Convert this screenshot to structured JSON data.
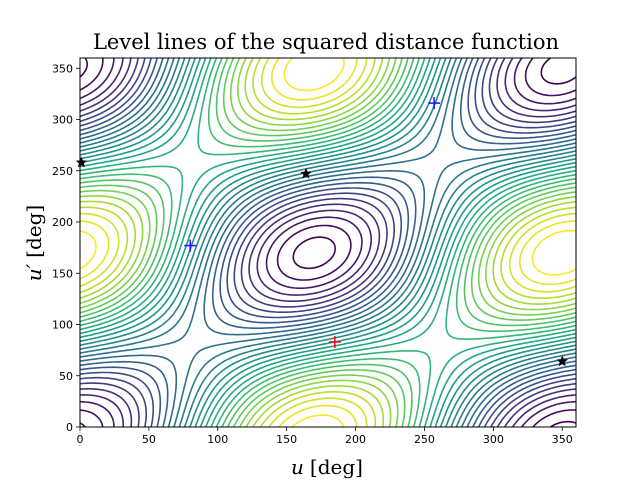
{
  "chart_data": {
    "type": "contour",
    "title": "Level lines of the squared distance function",
    "xlabel_var": "u",
    "xlabel_unit": "[deg]",
    "ylabel_var": "u′",
    "ylabel_unit": "[deg]",
    "xlim": [
      0,
      360
    ],
    "ylim": [
      0,
      360
    ],
    "xticks": [
      0,
      50,
      100,
      150,
      200,
      250,
      300,
      350
    ],
    "yticks": [
      0,
      50,
      100,
      150,
      200,
      250,
      300,
      350
    ],
    "colormap": "viridis",
    "num_levels": 30,
    "critical_points": [
      {
        "kind": "minimum",
        "marker": "plus",
        "color": "#1f1fff",
        "x": 80,
        "y": 177
      },
      {
        "kind": "minimum",
        "marker": "plus",
        "color": "#1f1fff",
        "x": 257,
        "y": 316
      },
      {
        "kind": "maximum",
        "marker": "plus",
        "color": "#e8141a",
        "x": 185,
        "y": 83
      },
      {
        "kind": "saddle",
        "marker": "star",
        "color": "#000000",
        "x": 164,
        "y": 247
      },
      {
        "kind": "saddle",
        "marker": "star",
        "color": "#000000",
        "x": 1,
        "y": 258
      },
      {
        "kind": "saddle",
        "marker": "star",
        "color": "#000000",
        "x": 350,
        "y": 64
      }
    ]
  }
}
